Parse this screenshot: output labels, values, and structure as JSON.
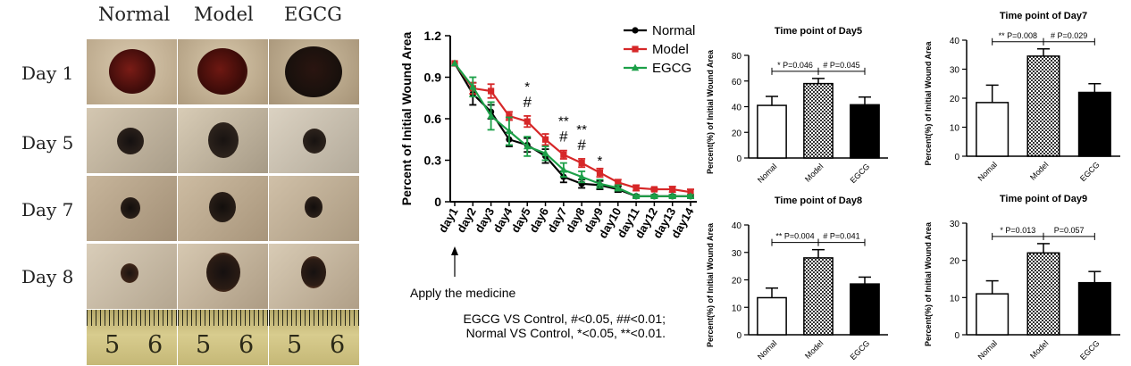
{
  "photos": {
    "columns": [
      "Normal",
      "Model",
      "EGCG"
    ],
    "rows": [
      "Day 1",
      "Day 5",
      "Day 7",
      "Day 8"
    ],
    "ruler_numbers": [
      "5",
      "6"
    ]
  },
  "chart_data": [
    {
      "type": "line",
      "ylabel": "Percent of Initial Wound Area",
      "ylim": [
        0,
        1.2
      ],
      "yticks": [
        "0",
        "0.3",
        "0.6",
        "0.9",
        "1.2"
      ],
      "categories": [
        "day1",
        "day2",
        "day3",
        "day4",
        "day5",
        "day6",
        "day7",
        "day8",
        "day9",
        "day10",
        "day11",
        "day12",
        "day13",
        "day14"
      ],
      "series": [
        {
          "name": "Normal",
          "color": "#000000",
          "marker": "circle",
          "values": [
            1.0,
            0.78,
            0.65,
            0.45,
            0.41,
            0.33,
            0.18,
            0.13,
            0.12,
            0.09,
            0.04,
            0.04,
            0.04,
            0.04
          ],
          "errors": [
            0,
            0.08,
            0.05,
            0.05,
            0.05,
            0.05,
            0.04,
            0.03,
            0.03,
            0.02,
            0.01,
            0.01,
            0.01,
            0.01
          ]
        },
        {
          "name": "Model",
          "color": "#d62728",
          "marker": "square",
          "values": [
            1.0,
            0.82,
            0.8,
            0.62,
            0.58,
            0.45,
            0.34,
            0.28,
            0.21,
            0.14,
            0.1,
            0.09,
            0.09,
            0.07
          ],
          "errors": [
            0,
            0.04,
            0.05,
            0.03,
            0.04,
            0.04,
            0.03,
            0.03,
            0.03,
            0.02,
            0.02,
            0.01,
            0.02,
            0.02
          ]
        },
        {
          "name": "EGCG",
          "color": "#1ca048",
          "marker": "triangle",
          "values": [
            1.0,
            0.83,
            0.62,
            0.51,
            0.4,
            0.35,
            0.23,
            0.18,
            0.13,
            0.1,
            0.04,
            0.04,
            0.04,
            0.04
          ],
          "errors": [
            0,
            0.07,
            0.1,
            0.1,
            0.07,
            0.05,
            0.05,
            0.04,
            0.03,
            0.02,
            0.01,
            0.01,
            0.01,
            0.01
          ]
        }
      ],
      "significance": [
        {
          "category": "day5",
          "marks": [
            "*",
            "#"
          ]
        },
        {
          "category": "day7",
          "marks": [
            "**",
            "#"
          ]
        },
        {
          "category": "day8",
          "marks": [
            "**",
            "#"
          ]
        },
        {
          "category": "day9",
          "marks": [
            "*"
          ]
        }
      ],
      "annotation": "Apply the medicine",
      "footnote": [
        "EGCG VS Control, #<0.05, ##<0.01;",
        "Normal VS Control, *<0.05, **<0.01."
      ]
    },
    {
      "type": "bar",
      "title": "Time point of Day5",
      "ylabel": "Percent(%) of Initial Wound Area",
      "ylim": [
        0,
        80
      ],
      "yticks": [
        "0",
        "20",
        "40",
        "60",
        "80"
      ],
      "categories": [
        "Nomal",
        "Model",
        "EGCG"
      ],
      "values": [
        41,
        58,
        41.5
      ],
      "errors": [
        7,
        4,
        6
      ],
      "fills": [
        "white",
        "checker",
        "black"
      ],
      "brackets": [
        {
          "label": "*  P=0.046",
          "from": 0,
          "to": 1
        },
        {
          "label": "#  P=0.045",
          "from": 1,
          "to": 2
        }
      ]
    },
    {
      "type": "bar",
      "title": "Time point of Day7",
      "ylabel": "Percent(%) of Initial Wound Area",
      "ylim": [
        0,
        40
      ],
      "yticks": [
        "0",
        "10",
        "20",
        "30",
        "40"
      ],
      "categories": [
        "Nomal",
        "Model",
        "EGCG"
      ],
      "values": [
        18.5,
        34.5,
        22
      ],
      "errors": [
        6,
        2.5,
        3
      ],
      "fills": [
        "white",
        "checker",
        "black"
      ],
      "brackets": [
        {
          "label": "**  P=0.008",
          "from": 0,
          "to": 1
        },
        {
          "label": "#  P=0.029",
          "from": 1,
          "to": 2
        }
      ]
    },
    {
      "type": "bar",
      "title": "Time point of Day8",
      "ylabel": "Percent(%) of Initial Wound Area",
      "ylim": [
        0,
        40
      ],
      "yticks": [
        "0",
        "10",
        "20",
        "30",
        "40"
      ],
      "categories": [
        "Nomal",
        "Model",
        "EGCG"
      ],
      "values": [
        13.5,
        28,
        18.5
      ],
      "errors": [
        3.5,
        3,
        2.5
      ],
      "fills": [
        "white",
        "checker",
        "black"
      ],
      "brackets": [
        {
          "label": "**  P=0.004",
          "from": 0,
          "to": 1
        },
        {
          "label": "#  P=0.041",
          "from": 1,
          "to": 2
        }
      ]
    },
    {
      "type": "bar",
      "title": "Time point of  Day9",
      "ylabel": "Percent(%) of Initial Wound Area",
      "ylim": [
        0,
        30
      ],
      "yticks": [
        "0",
        "10",
        "20",
        "30"
      ],
      "categories": [
        "Nomal",
        "Model",
        "EGCG"
      ],
      "values": [
        11,
        22,
        14
      ],
      "errors": [
        3.5,
        2.5,
        3
      ],
      "fills": [
        "white",
        "checker",
        "black"
      ],
      "brackets": [
        {
          "label": "*  P=0.013",
          "from": 0,
          "to": 1
        },
        {
          "label": "P=0.057",
          "from": 1,
          "to": 2
        }
      ]
    }
  ]
}
